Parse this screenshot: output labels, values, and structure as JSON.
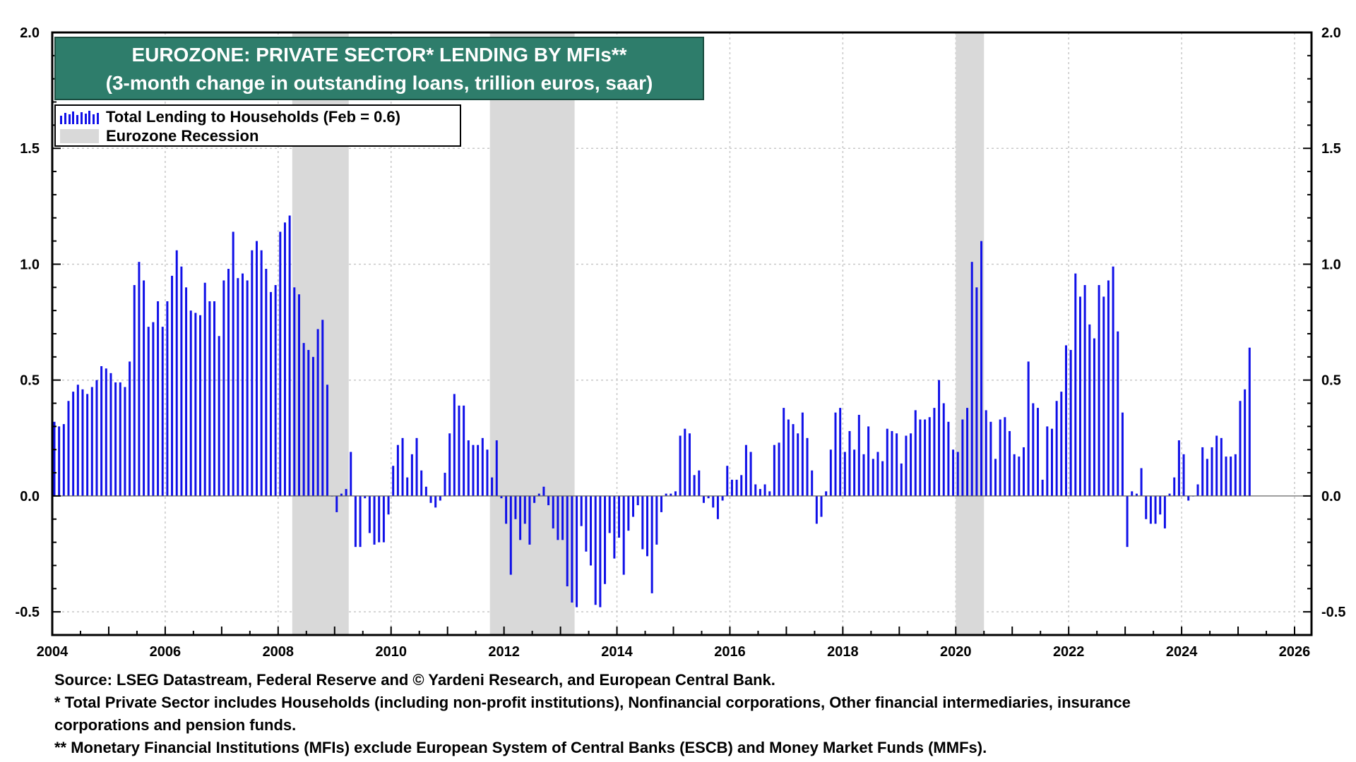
{
  "title": {
    "line1": "EUROZONE: PRIVATE SECTOR* LENDING  BY MFIs**",
    "line2": "(3-month change in outstanding loans, trillion euros, saar)"
  },
  "legend": {
    "series_label": "Total Lending to Households (Feb = 0.6)",
    "recession_label": "Eurozone Recession"
  },
  "footnotes": {
    "source": "Source: LSEG Datastream, Federal Reserve and © Yardeni Research, and European Central Bank.",
    "note1_line1": "* Total Private Sector includes Households (including non-profit institutions), Nonfinancial corporations, Other financial intermediaries, insurance",
    "note1_line2": "corporations and pension funds.",
    "note2": "** Monetary Financial Institutions (MFIs) exclude European System of Central Banks (ESCB) and Money Market Funds (MMFs)."
  },
  "colors": {
    "bars": "#1010e8",
    "recession": "#d9d9d9",
    "title_bg": "#2e7d6b",
    "grid": "#c8c8c8"
  },
  "chart_data": {
    "type": "bar",
    "title": "EUROZONE: PRIVATE SECTOR* LENDING  BY MFIs**",
    "subtitle": "(3-month change in outstanding loans, trillion euros, saar)",
    "xlabel": "",
    "ylabel": "",
    "xlim": [
      2004,
      2026.3
    ],
    "ylim": [
      -0.6,
      2.0
    ],
    "x_ticks": [
      2004,
      2006,
      2008,
      2010,
      2012,
      2014,
      2016,
      2018,
      2020,
      2022,
      2024,
      2026
    ],
    "y_ticks": [
      -0.5,
      0.0,
      0.5,
      1.0,
      1.5,
      2.0
    ],
    "y_tick_labels": [
      "-0.5",
      "0.0",
      "0.5",
      "1.0",
      "1.5",
      "2.0"
    ],
    "grid": true,
    "legend_position": "top-left",
    "recessions": [
      [
        2008.25,
        2009.25
      ],
      [
        2011.75,
        2013.25
      ],
      [
        2020.0,
        2020.5
      ]
    ],
    "series": [
      {
        "name": "Total Lending to Households (Feb = 0.6)",
        "start_year": 2004.0,
        "step": 0.08333,
        "values": [
          0.32,
          0.3,
          0.31,
          0.41,
          0.45,
          0.48,
          0.46,
          0.44,
          0.47,
          0.5,
          0.56,
          0.55,
          0.53,
          0.49,
          0.49,
          0.47,
          0.58,
          0.91,
          1.01,
          0.93,
          0.73,
          0.75,
          0.84,
          0.73,
          0.84,
          0.95,
          1.06,
          0.99,
          0.9,
          0.8,
          0.79,
          0.78,
          0.92,
          0.84,
          0.84,
          0.69,
          0.93,
          0.98,
          1.14,
          0.94,
          0.96,
          0.93,
          1.06,
          1.1,
          1.06,
          0.98,
          0.88,
          0.91,
          1.14,
          1.18,
          1.21,
          0.9,
          0.87,
          0.66,
          0.63,
          0.6,
          0.72,
          0.76,
          0.48,
          0.0,
          -0.07,
          0.01,
          0.03,
          0.19,
          -0.22,
          -0.22,
          -0.01,
          -0.16,
          -0.21,
          -0.2,
          -0.2,
          -0.08,
          0.13,
          0.22,
          0.25,
          0.08,
          0.18,
          0.25,
          0.11,
          0.04,
          -0.03,
          -0.05,
          -0.02,
          0.1,
          0.27,
          0.44,
          0.39,
          0.39,
          0.24,
          0.22,
          0.22,
          0.25,
          0.2,
          0.08,
          0.24,
          -0.01,
          -0.12,
          -0.34,
          -0.1,
          -0.19,
          -0.12,
          -0.21,
          -0.03,
          0.01,
          0.04,
          -0.04,
          -0.14,
          -0.19,
          -0.19,
          -0.39,
          -0.46,
          -0.48,
          -0.13,
          -0.24,
          -0.3,
          -0.47,
          -0.48,
          -0.38,
          -0.16,
          -0.27,
          -0.18,
          -0.34,
          -0.15,
          -0.09,
          -0.04,
          -0.23,
          -0.26,
          -0.42,
          -0.21,
          -0.07,
          0.01,
          0.01,
          0.02,
          0.26,
          0.29,
          0.27,
          0.09,
          0.11,
          -0.03,
          -0.01,
          -0.05,
          -0.1,
          -0.02,
          0.13,
          0.07,
          0.07,
          0.09,
          0.22,
          0.19,
          0.05,
          0.03,
          0.05,
          0.02,
          0.22,
          0.23,
          0.38,
          0.33,
          0.31,
          0.27,
          0.36,
          0.25,
          0.11,
          -0.12,
          -0.09,
          0.02,
          0.2,
          0.36,
          0.38,
          0.19,
          0.28,
          0.2,
          0.35,
          0.18,
          0.3,
          0.16,
          0.19,
          0.15,
          0.29,
          0.28,
          0.27,
          0.14,
          0.26,
          0.27,
          0.37,
          0.33,
          0.33,
          0.34,
          0.38,
          0.5,
          0.4,
          0.32,
          0.2,
          0.19,
          0.33,
          0.38,
          1.01,
          0.9,
          1.1,
          0.37,
          0.32,
          0.16,
          0.33,
          0.34,
          0.28,
          0.18,
          0.17,
          0.21,
          0.58,
          0.4,
          0.38,
          0.07,
          0.3,
          0.29,
          0.41,
          0.45,
          0.65,
          0.63,
          0.96,
          0.86,
          0.91,
          0.74,
          0.68,
          0.91,
          0.86,
          0.93,
          0.99,
          0.71,
          0.36,
          -0.22,
          0.02,
          0.01,
          0.12,
          -0.1,
          -0.12,
          -0.12,
          -0.08,
          -0.14,
          0.01,
          0.08,
          0.24,
          0.18,
          -0.02,
          0.0,
          0.05,
          0.21,
          0.16,
          0.21,
          0.26,
          0.25,
          0.17,
          0.17,
          0.18,
          0.41,
          0.46,
          0.64
        ]
      }
    ]
  }
}
